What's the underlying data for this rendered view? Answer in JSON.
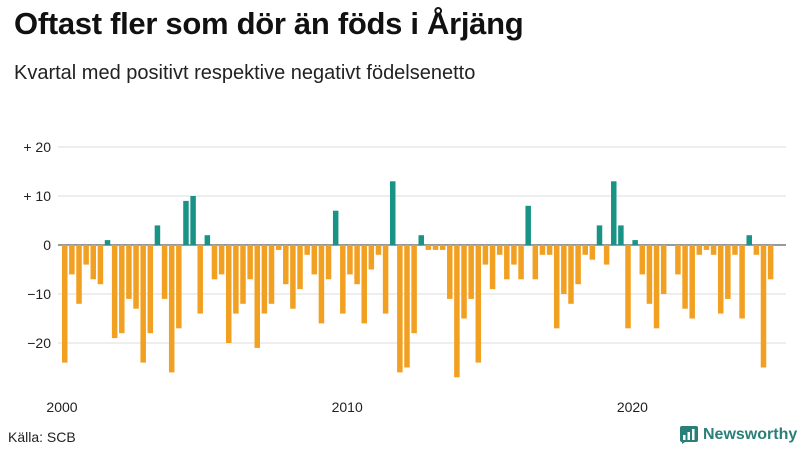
{
  "title": "Oftast fler som dör än föds i Årjäng",
  "subtitle": "Kvartal med positivt respektive negativt födelsenetto",
  "source": "Källa: SCB",
  "brand": "Newsworthy",
  "colors": {
    "positive": "#1a9387",
    "negative": "#f2a021",
    "grid": "#dddddd",
    "zero_line": "#333333"
  },
  "chart_data": {
    "type": "bar",
    "title": "Oftast fler som dör än föds i Årjäng",
    "subtitle": "Kvartal med positivt respektive negativt födelsenetto",
    "ylim": [
      -28,
      21
    ],
    "yticks": [
      {
        "value": 20,
        "label": "+ 20"
      },
      {
        "value": 10,
        "label": "+ 10"
      },
      {
        "value": 0,
        "label": "0"
      },
      {
        "value": -10,
        "label": "−10"
      },
      {
        "value": -20,
        "label": "−20"
      }
    ],
    "xticks": [
      {
        "year": 2000,
        "label": "2000"
      },
      {
        "year": 2010,
        "label": "2010"
      },
      {
        "year": 2020,
        "label": "2020"
      }
    ],
    "start": "2000 Q1",
    "grid": true,
    "values": [
      -24,
      -6,
      -12,
      -4,
      -7,
      -8,
      1,
      -19,
      -18,
      -11,
      -13,
      -24,
      -18,
      4,
      -11,
      -26,
      -17,
      9,
      10,
      -14,
      2,
      -7,
      -6,
      -20,
      -14,
      -12,
      -7,
      -21,
      -14,
      -12,
      -1,
      -8,
      -13,
      -9,
      -2,
      -6,
      -16,
      -7,
      7,
      -14,
      -6,
      -8,
      -16,
      -5,
      -2,
      -14,
      13,
      -26,
      -25,
      -18,
      2,
      -1,
      -1,
      -1,
      -11,
      -27,
      -15,
      -11,
      -24,
      -4,
      -9,
      -2,
      -7,
      -4,
      -7,
      8,
      -7,
      -2,
      -2,
      -17,
      -10,
      -12,
      -8,
      -2,
      -3,
      4,
      -4,
      13,
      4,
      -17,
      1,
      -6,
      -12,
      -17,
      -10,
      0,
      -6,
      -13,
      -15,
      -2,
      -1,
      -2,
      -14,
      -11,
      -2,
      -15,
      2,
      -2,
      -25,
      -7
    ]
  }
}
